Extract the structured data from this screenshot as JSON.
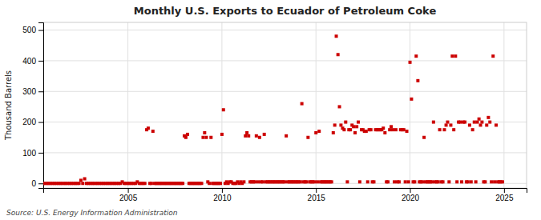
{
  "chart_data": {
    "type": "scatter",
    "title": "Monthly U.S. Exports to Ecuador of Petroleum Coke",
    "ylabel": "Thousand Barrels",
    "source": "Source: U.S. Energy Information Administration",
    "color": "#cc0000",
    "marker": "square",
    "grid": true,
    "xlim": [
      2000.5,
      2026.2
    ],
    "ylim": [
      -15,
      525
    ],
    "xticks": [
      2005,
      2010,
      2015,
      2020,
      2025
    ],
    "yticks": [
      0,
      100,
      200,
      300,
      400,
      500
    ],
    "x": [
      2000.5,
      2000.6,
      2000.7,
      2000.8,
      2000.9,
      2001.0,
      2001.1,
      2001.2,
      2001.3,
      2001.4,
      2001.5,
      2001.6,
      2001.7,
      2001.8,
      2001.9,
      2002.0,
      2002.1,
      2002.2,
      2002.3,
      2002.4,
      2002.5,
      2002.6,
      2002.7,
      2002.8,
      2002.9,
      2003.0,
      2003.1,
      2003.2,
      2003.3,
      2003.4,
      2003.5,
      2003.6,
      2003.7,
      2003.8,
      2003.9,
      2004.0,
      2004.1,
      2004.2,
      2004.3,
      2004.4,
      2004.5,
      2004.6,
      2004.7,
      2004.8,
      2004.9,
      2005.0,
      2005.1,
      2005.2,
      2005.3,
      2005.4,
      2005.5,
      2005.6,
      2005.7,
      2005.8,
      2005.9,
      2006.0,
      2006.08,
      2006.17,
      2006.25,
      2006.33,
      2006.42,
      2006.5,
      2006.58,
      2006.67,
      2006.75,
      2006.83,
      2006.92,
      2007.0,
      2007.08,
      2007.17,
      2007.25,
      2007.33,
      2007.42,
      2007.5,
      2007.58,
      2007.67,
      2007.75,
      2007.83,
      2007.92,
      2008.0,
      2008.08,
      2008.17,
      2008.25,
      2008.33,
      2008.42,
      2008.5,
      2008.58,
      2008.67,
      2008.75,
      2008.83,
      2008.92,
      2009.0,
      2009.08,
      2009.17,
      2009.25,
      2009.33,
      2009.42,
      2009.5,
      2009.58,
      2009.67,
      2009.75,
      2009.83,
      2009.92,
      2010.0,
      2010.08,
      2010.17,
      2010.25,
      2010.33,
      2010.42,
      2010.5,
      2010.58,
      2010.67,
      2010.75,
      2010.83,
      2010.92,
      2011.0,
      2011.08,
      2011.17,
      2011.25,
      2011.33,
      2011.42,
      2011.5,
      2011.58,
      2011.67,
      2011.75,
      2011.83,
      2011.92,
      2012.0,
      2012.08,
      2012.17,
      2012.25,
      2012.33,
      2012.42,
      2012.5,
      2012.58,
      2012.67,
      2012.75,
      2012.83,
      2012.92,
      2013.0,
      2013.08,
      2013.17,
      2013.25,
      2013.33,
      2013.42,
      2013.5,
      2013.58,
      2013.67,
      2013.75,
      2013.83,
      2013.92,
      2014.0,
      2014.08,
      2014.17,
      2014.25,
      2014.33,
      2014.42,
      2014.5,
      2014.58,
      2014.67,
      2014.75,
      2014.83,
      2014.92,
      2015.0,
      2015.08,
      2015.17,
      2015.25,
      2015.33,
      2015.42,
      2015.5,
      2015.58,
      2015.67,
      2015.75,
      2015.83,
      2015.92,
      2016.0,
      2016.08,
      2016.17,
      2016.25,
      2016.33,
      2016.42,
      2016.5,
      2016.58,
      2016.67,
      2016.75,
      2016.83,
      2016.92,
      2017.0,
      2017.08,
      2017.17,
      2017.25,
      2017.33,
      2017.42,
      2017.5,
      2017.58,
      2017.67,
      2017.75,
      2017.83,
      2017.92,
      2018.0,
      2018.08,
      2018.17,
      2018.25,
      2018.33,
      2018.42,
      2018.5,
      2018.58,
      2018.67,
      2018.75,
      2018.83,
      2018.92,
      2019.0,
      2019.08,
      2019.17,
      2019.25,
      2019.33,
      2019.42,
      2019.5,
      2019.58,
      2019.67,
      2019.75,
      2019.83,
      2019.92,
      2020.0,
      2020.08,
      2020.17,
      2020.25,
      2020.33,
      2020.42,
      2020.5,
      2020.58,
      2020.67,
      2020.75,
      2020.83,
      2020.92,
      2021.0,
      2021.08,
      2021.17,
      2021.25,
      2021.33,
      2021.42,
      2021.5,
      2021.58,
      2021.67,
      2021.75,
      2021.83,
      2021.92,
      2022.0,
      2022.08,
      2022.17,
      2022.25,
      2022.33,
      2022.42,
      2022.5,
      2022.58,
      2022.67,
      2022.75,
      2022.83,
      2022.92,
      2023.0,
      2023.08,
      2023.17,
      2023.25,
      2023.33,
      2023.42,
      2023.5,
      2023.58,
      2023.67,
      2023.75,
      2023.83,
      2023.92,
      2024.0,
      2024.08,
      2024.17,
      2024.25,
      2024.33,
      2024.42,
      2024.5,
      2024.58,
      2024.67,
      2024.75,
      2024.83,
      2024.92
    ],
    "values": [
      0,
      0,
      0,
      0,
      0,
      0,
      0,
      0,
      0,
      0,
      0,
      0,
      0,
      0,
      0,
      0,
      0,
      0,
      0,
      0,
      10,
      0,
      15,
      0,
      0,
      0,
      0,
      0,
      0,
      0,
      0,
      0,
      0,
      0,
      0,
      0,
      0,
      0,
      0,
      0,
      0,
      0,
      5,
      0,
      0,
      0,
      0,
      0,
      0,
      0,
      5,
      0,
      0,
      0,
      0,
      175,
      180,
      0,
      0,
      170,
      0,
      0,
      0,
      0,
      0,
      0,
      0,
      0,
      0,
      0,
      0,
      0,
      0,
      0,
      0,
      0,
      0,
      0,
      0,
      155,
      150,
      160,
      0,
      0,
      0,
      0,
      0,
      0,
      0,
      0,
      0,
      150,
      165,
      150,
      5,
      0,
      150,
      0,
      0,
      0,
      0,
      0,
      0,
      160,
      240,
      0,
      5,
      0,
      5,
      5,
      0,
      0,
      0,
      5,
      0,
      5,
      0,
      5,
      155,
      165,
      155,
      5,
      5,
      5,
      5,
      155,
      5,
      150,
      5,
      5,
      160,
      5,
      5,
      5,
      5,
      5,
      5,
      5,
      5,
      5,
      5,
      5,
      5,
      5,
      155,
      5,
      5,
      5,
      5,
      5,
      5,
      5,
      5,
      5,
      260,
      5,
      5,
      5,
      150,
      5,
      5,
      5,
      5,
      165,
      5,
      170,
      5,
      5,
      5,
      5,
      5,
      5,
      5,
      5,
      165,
      190,
      480,
      420,
      250,
      190,
      180,
      175,
      200,
      5,
      175,
      175,
      190,
      185,
      165,
      185,
      200,
      5,
      175,
      175,
      170,
      170,
      5,
      175,
      175,
      5,
      5,
      175,
      175,
      175,
      175,
      175,
      180,
      165,
      5,
      5,
      175,
      185,
      175,
      5,
      175,
      5,
      5,
      175,
      175,
      175,
      5,
      170,
      5,
      395,
      275,
      5,
      5,
      415,
      335,
      5,
      5,
      5,
      150,
      5,
      5,
      5,
      5,
      5,
      200,
      5,
      5,
      5,
      175,
      5,
      5,
      175,
      190,
      200,
      5,
      190,
      415,
      175,
      415,
      5,
      200,
      200,
      5,
      200,
      200,
      5,
      5,
      190,
      5,
      175,
      200,
      5,
      200,
      210,
      190,
      200,
      5,
      5,
      190,
      215,
      200,
      5,
      415,
      5,
      190,
      5,
      5,
      5,
      5
    ]
  }
}
